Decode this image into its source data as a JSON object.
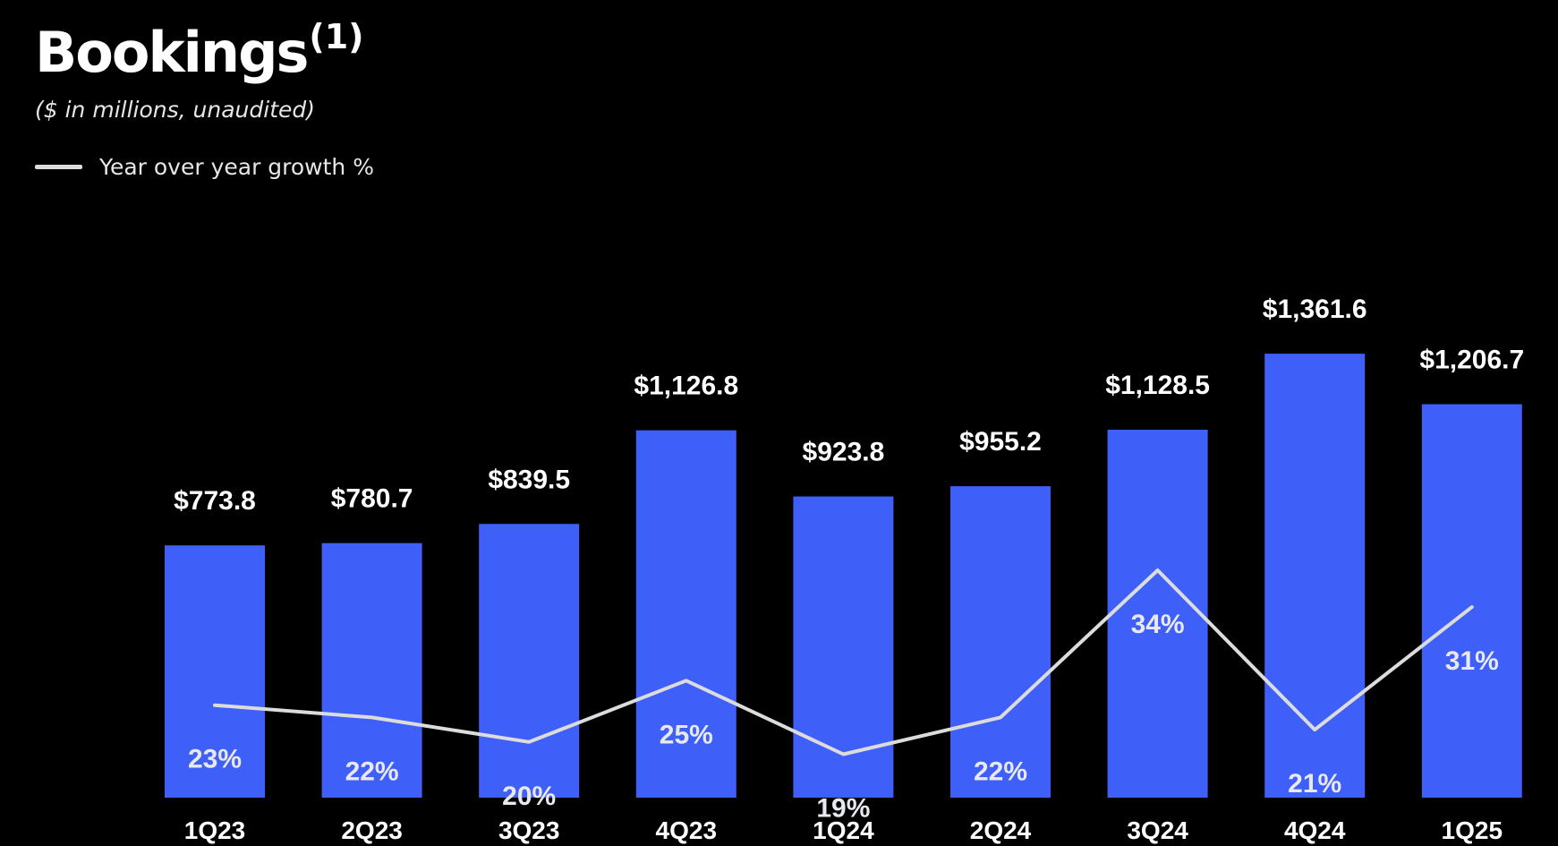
{
  "page": {
    "title": "Bookings",
    "title_footnote": "(1)",
    "subtitle": "($ in millions, unaudited)",
    "background_color": "#000000"
  },
  "legend": {
    "label": "Year over year growth %",
    "line_color": "#dcdcdc"
  },
  "chart_data": {
    "type": "bar",
    "title": "Bookings",
    "subtitle": "($ in millions, unaudited)",
    "categories": [
      "1Q23",
      "2Q23",
      "3Q23",
      "4Q23",
      "1Q24",
      "2Q24",
      "3Q24",
      "4Q24",
      "1Q25"
    ],
    "series": [
      {
        "type": "bar",
        "color": "#3e5ff8",
        "values": [
          773.8,
          780.7,
          839.5,
          1126.8,
          923.8,
          955.2,
          1128.5,
          1361.6,
          1206.7
        ],
        "labels": [
          "$773.8",
          "$780.7",
          "$839.5",
          "$1,126.8",
          "$923.8",
          "$955.2",
          "$1,128.5",
          "$1,361.6",
          "$1,206.7"
        ]
      },
      {
        "name": "Year over year growth %",
        "type": "line",
        "color": "#dcdcdc",
        "values": [
          23,
          22,
          20,
          25,
          19,
          22,
          34,
          21,
          31
        ],
        "labels": [
          "23%",
          "22%",
          "20%",
          "25%",
          "19%",
          "22%",
          "34%",
          "21%",
          "31%"
        ]
      }
    ],
    "xlabel": "",
    "ylabel": "",
    "grid": false,
    "legend_position": "top-left"
  }
}
